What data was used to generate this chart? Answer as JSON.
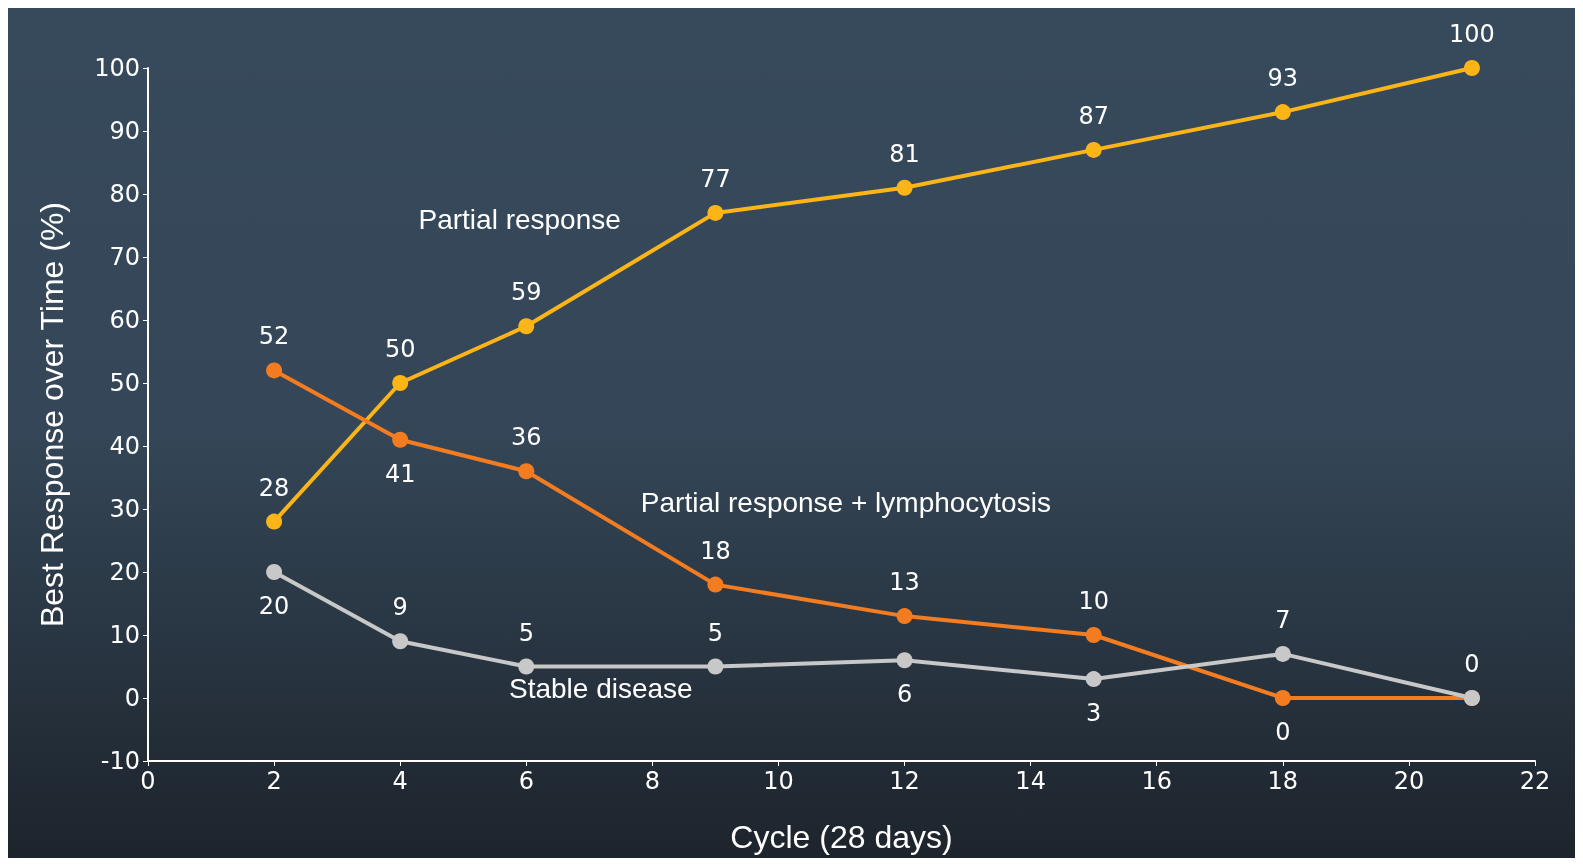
{
  "chart_data": {
    "type": "line",
    "xlabel": "Cycle (28 days)",
    "ylabel": "Best Response over Time (%)",
    "x": [
      2,
      4,
      6,
      9,
      12,
      15,
      18,
      21
    ],
    "series": [
      {
        "name": "Partial response",
        "color": "#fbb516",
        "values": [
          28,
          50,
          59,
          77,
          81,
          87,
          93,
          100
        ],
        "value_labels": [
          "28",
          "50",
          "59",
          "77",
          "81",
          "87",
          "93",
          "100"
        ]
      },
      {
        "name": "Partial response + lymphocytosis",
        "color": "#f47c20",
        "values": [
          52,
          41,
          36,
          18,
          13,
          10,
          0,
          0
        ],
        "value_labels": [
          "52",
          "41",
          "36",
          "18",
          "13",
          "10",
          "0",
          null
        ]
      },
      {
        "name": "Stable disease",
        "color": "#c8c8c8",
        "values": [
          20,
          9,
          5,
          5,
          6,
          3,
          7,
          0
        ],
        "value_labels": [
          "20",
          "9",
          "5",
          "5",
          "6",
          "3",
          "7",
          "0"
        ]
      }
    ],
    "xlim": [
      0,
      22
    ],
    "xticks": [
      0,
      2,
      4,
      6,
      8,
      10,
      12,
      14,
      16,
      18,
      20,
      22
    ],
    "ylim": [
      -10,
      100
    ],
    "yticks": [
      -10,
      0,
      10,
      20,
      30,
      40,
      50,
      60,
      70,
      80,
      90,
      100
    ],
    "grid": false,
    "legend": false,
    "marker": "circle",
    "line_style": "solid"
  }
}
